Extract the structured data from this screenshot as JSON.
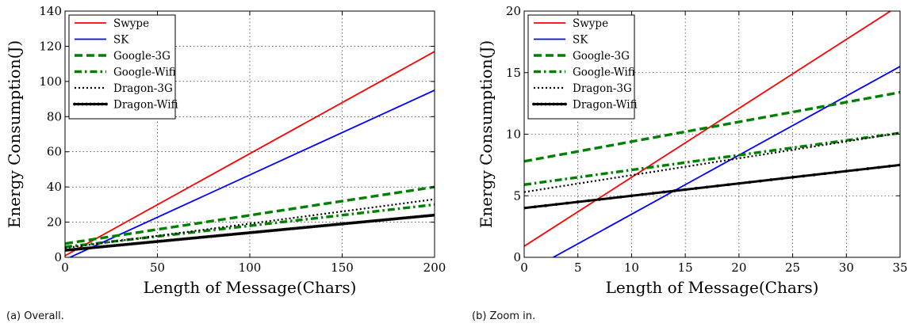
{
  "chart_data": [
    {
      "type": "line",
      "caption": "(a) Overall.",
      "xlabel": "Length of Message(Chars)",
      "ylabel": "Energy Consumption(J)",
      "xlim": [
        0,
        200
      ],
      "ylim": [
        0,
        140
      ],
      "xticks": [
        0,
        50,
        100,
        150,
        200
      ],
      "yticks": [
        0,
        20,
        40,
        60,
        80,
        100,
        120,
        140
      ],
      "grid": true,
      "legend_position": "top-left",
      "series": [
        {
          "name": "Swype",
          "x": [
            0,
            200
          ],
          "y": [
            0.9,
            117
          ],
          "color": "#ff0000",
          "style": "solid"
        },
        {
          "name": "SK",
          "x": [
            0,
            200
          ],
          "y": [
            -1.3,
            95
          ],
          "color": "#0000ff",
          "style": "solid"
        },
        {
          "name": "Google-3G",
          "x": [
            0,
            200
          ],
          "y": [
            7.8,
            40
          ],
          "color": "#008000",
          "style": "dashed"
        },
        {
          "name": "Google-Wifi",
          "x": [
            0,
            200
          ],
          "y": [
            5.9,
            30
          ],
          "color": "#008000",
          "style": "dashdot"
        },
        {
          "name": "Dragon-3G",
          "x": [
            0,
            200
          ],
          "y": [
            5.3,
            33
          ],
          "color": "#000000",
          "style": "dotted"
        },
        {
          "name": "Dragon-Wifi",
          "x": [
            0,
            200
          ],
          "y": [
            4.0,
            24
          ],
          "color": "#000000",
          "style": "solid-dots"
        }
      ]
    },
    {
      "type": "line",
      "caption": "(b) Zoom in.",
      "xlabel": "Length of Message(Chars)",
      "ylabel": "Energy Consumption(J)",
      "xlim": [
        0,
        35
      ],
      "ylim": [
        0,
        20
      ],
      "xticks": [
        0,
        5,
        10,
        15,
        20,
        25,
        30,
        35
      ],
      "yticks": [
        0,
        5,
        10,
        15,
        20
      ],
      "grid": true,
      "legend_position": "top-left",
      "series": [
        {
          "name": "Swype",
          "x": [
            0,
            35
          ],
          "y": [
            0.9,
            20.5
          ],
          "color": "#ff0000",
          "style": "solid"
        },
        {
          "name": "SK",
          "x": [
            0,
            35
          ],
          "y": [
            -1.3,
            15.5
          ],
          "color": "#0000ff",
          "style": "solid"
        },
        {
          "name": "Google-3G",
          "x": [
            0,
            35
          ],
          "y": [
            7.8,
            13.4
          ],
          "color": "#008000",
          "style": "dashed"
        },
        {
          "name": "Google-Wifi",
          "x": [
            0,
            35
          ],
          "y": [
            5.9,
            10.1
          ],
          "color": "#008000",
          "style": "dashdot"
        },
        {
          "name": "Dragon-3G",
          "x": [
            0,
            35
          ],
          "y": [
            5.3,
            10.1
          ],
          "color": "#000000",
          "style": "dotted"
        },
        {
          "name": "Dragon-Wifi",
          "x": [
            0,
            35
          ],
          "y": [
            4.0,
            7.5
          ],
          "color": "#000000",
          "style": "solid-dots"
        }
      ]
    }
  ]
}
